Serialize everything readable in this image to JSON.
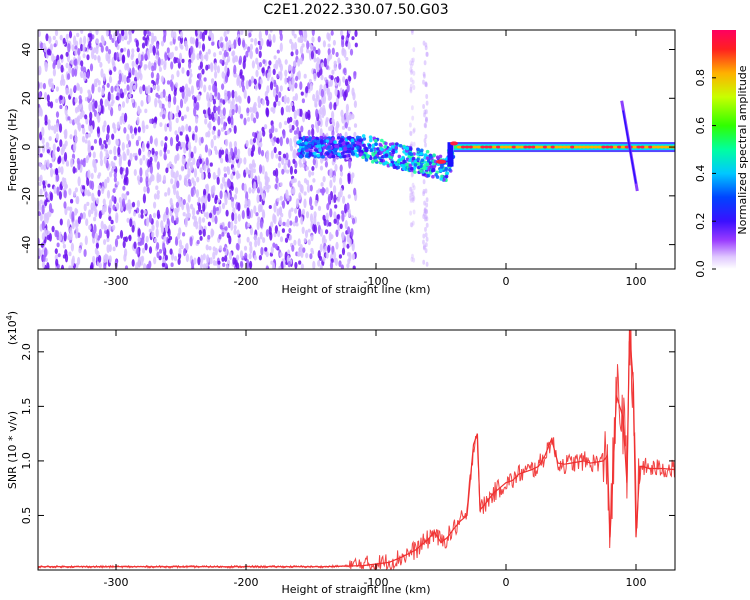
{
  "figure": {
    "title": "C2E1.2022.330.07.50.G03"
  },
  "chart_data": [
    {
      "type": "heatmap",
      "title": "C2E1.2022.330.07.50.G03",
      "xlabel": "Height of straight line (km)",
      "ylabel": "Frequency (Hz)",
      "xlim": [
        -360,
        130
      ],
      "ylim": [
        -50,
        48
      ],
      "x_ticks": [
        -300,
        -200,
        -100,
        0,
        100
      ],
      "y_ticks": [
        -40,
        -20,
        0,
        20,
        40
      ],
      "colorbar": {
        "label": "Normalized spectral amplitude",
        "range": [
          0.0,
          1.0
        ],
        "ticks": [
          0.0,
          0.2,
          0.4,
          0.6,
          0.8
        ],
        "tick_labels": [
          "0.0",
          "0.2",
          "0.4",
          "0.6",
          "0.8"
        ]
      },
      "features": [
        {
          "x_range": [
            -360,
            -115
          ],
          "freq_range": [
            -50,
            48
          ],
          "amplitude": 0.1
        },
        {
          "x_range": [
            -160,
            -110
          ],
          "freq_center": 0,
          "amplitude": 0.35
        },
        {
          "x_range": [
            -110,
            -40
          ],
          "freq_center": -8,
          "amplitude": 0.45
        },
        {
          "x_range": [
            -40,
            130
          ],
          "freq_center": 0,
          "amplitude": 0.95
        },
        {
          "x_range": [
            88,
            102
          ],
          "freq_range": [
            -18,
            18
          ],
          "amplitude": 0.3
        }
      ],
      "grid": false
    },
    {
      "type": "line",
      "xlabel": "Height of straight line (km)",
      "ylabel": "SNR (10 * v/v)",
      "y_scale_note": "(x10",
      "y_scale_exp": "4",
      "y_scale_close": ")",
      "xlim": [
        -360,
        130
      ],
      "ylim": [
        0,
        2.2
      ],
      "x_ticks": [
        -300,
        -200,
        -100,
        0,
        100
      ],
      "y_ticks": [
        0.5,
        1.0,
        1.5,
        2.0
      ],
      "y_tick_labels": [
        "0.5",
        "1.0",
        "1.5",
        "2.0"
      ],
      "series": [
        {
          "color": "#f03030",
          "x": [
            -360,
            -300,
            -200,
            -140,
            -110,
            -90,
            -80,
            -70,
            -60,
            -55,
            -50,
            -45,
            -40,
            -35,
            -30,
            -25,
            -22,
            -20,
            -15,
            -10,
            -5,
            0,
            5,
            10,
            15,
            20,
            25,
            30,
            35,
            40,
            45,
            50,
            55,
            60,
            65,
            70,
            75,
            78,
            80,
            85,
            90,
            93,
            95,
            98,
            100,
            103,
            105,
            110,
            120,
            130
          ],
          "y": [
            0.03,
            0.03,
            0.03,
            0.03,
            0.04,
            0.07,
            0.12,
            0.18,
            0.28,
            0.35,
            0.25,
            0.3,
            0.38,
            0.45,
            0.5,
            1.15,
            1.25,
            0.55,
            0.62,
            0.7,
            0.75,
            0.8,
            0.82,
            0.88,
            0.9,
            0.92,
            0.95,
            1.05,
            1.2,
            0.98,
            0.97,
            0.98,
            0.99,
            1.0,
            0.98,
            0.99,
            1.0,
            1.05,
            0.3,
            1.6,
            1.4,
            0.8,
            2.2,
            1.7,
            0.3,
            0.95,
            0.95,
            0.93,
            0.93,
            0.92
          ]
        }
      ],
      "grid": false
    }
  ]
}
